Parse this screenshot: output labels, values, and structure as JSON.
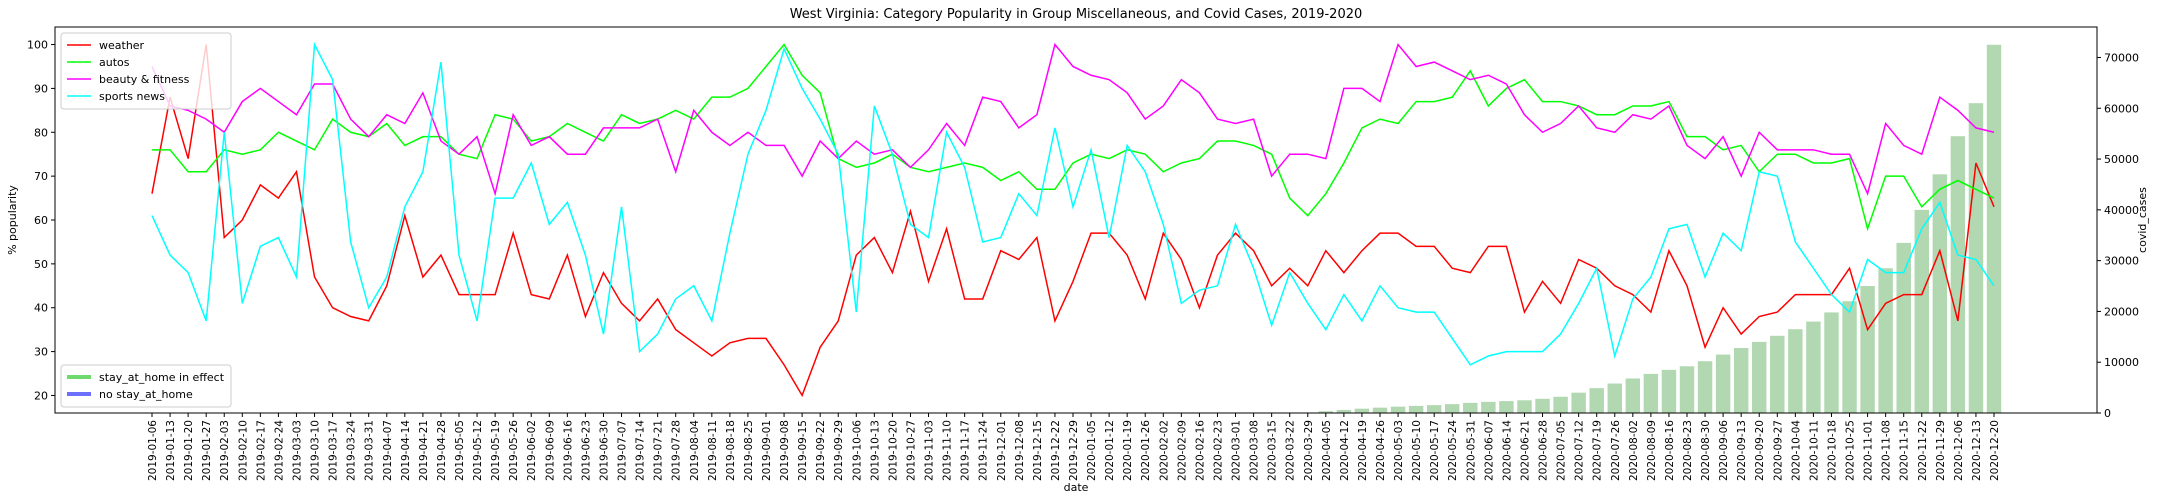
{
  "chart_data": {
    "type": "line",
    "title": "West Virginia: Category Popularity in Group Miscellaneous, and Covid Cases, 2019-2020",
    "xlabel": "date",
    "ylabel": "% popularity",
    "y2label": "covid_cases",
    "categories": [
      "2019-01-06",
      "2019-01-13",
      "2019-01-20",
      "2019-01-27",
      "2019-02-03",
      "2019-02-10",
      "2019-02-17",
      "2019-02-24",
      "2019-03-03",
      "2019-03-10",
      "2019-03-17",
      "2019-03-24",
      "2019-03-31",
      "2019-04-07",
      "2019-04-14",
      "2019-04-21",
      "2019-04-28",
      "2019-05-05",
      "2019-05-12",
      "2019-05-19",
      "2019-05-26",
      "2019-06-02",
      "2019-06-09",
      "2019-06-16",
      "2019-06-23",
      "2019-06-30",
      "2019-07-07",
      "2019-07-14",
      "2019-07-21",
      "2019-07-28",
      "2019-08-04",
      "2019-08-11",
      "2019-08-18",
      "2019-08-25",
      "2019-09-01",
      "2019-09-08",
      "2019-09-15",
      "2019-09-22",
      "2019-09-29",
      "2019-10-06",
      "2019-10-13",
      "2019-10-20",
      "2019-10-27",
      "2019-11-03",
      "2019-11-10",
      "2019-11-17",
      "2019-11-24",
      "2019-12-01",
      "2019-12-08",
      "2019-12-15",
      "2019-12-22",
      "2019-12-29",
      "2020-01-05",
      "2020-01-12",
      "2020-01-19",
      "2020-01-26",
      "2020-02-02",
      "2020-02-09",
      "2020-02-16",
      "2020-02-23",
      "2020-03-01",
      "2020-03-08",
      "2020-03-15",
      "2020-03-22",
      "2020-03-29",
      "2020-04-05",
      "2020-04-12",
      "2020-04-19",
      "2020-04-26",
      "2020-05-03",
      "2020-05-10",
      "2020-05-17",
      "2020-05-24",
      "2020-05-31",
      "2020-06-07",
      "2020-06-14",
      "2020-06-21",
      "2020-06-28",
      "2020-07-05",
      "2020-07-12",
      "2020-07-19",
      "2020-07-26",
      "2020-08-02",
      "2020-08-09",
      "2020-08-16",
      "2020-08-23",
      "2020-08-30",
      "2020-09-06",
      "2020-09-13",
      "2020-09-20",
      "2020-09-27",
      "2020-10-04",
      "2020-10-11",
      "2020-10-18",
      "2020-10-25",
      "2020-11-01",
      "2020-11-08",
      "2020-11-15",
      "2020-11-22",
      "2020-11-29",
      "2020-12-06",
      "2020-12-13",
      "2020-12-20"
    ],
    "series": [
      {
        "name": "weather",
        "color": "#ff0000",
        "values": [
          66,
          88,
          74,
          100,
          56,
          60,
          68,
          65,
          71,
          47,
          40,
          38,
          37,
          45,
          61,
          47,
          52,
          43,
          43,
          43,
          57,
          43,
          42,
          52,
          38,
          48,
          41,
          37,
          42,
          35,
          32,
          29,
          32,
          33,
          33,
          27,
          20,
          31,
          37,
          52,
          56,
          48,
          62,
          46,
          58,
          42,
          42,
          53,
          51,
          56,
          37,
          46,
          57,
          57,
          52,
          42,
          57,
          51,
          40,
          52,
          57,
          53,
          45,
          49,
          45,
          53,
          48,
          53,
          57,
          57,
          54,
          54,
          49,
          48,
          54,
          54,
          39,
          46,
          41,
          51,
          49,
          45,
          43,
          39,
          53,
          45,
          31,
          40,
          34,
          38,
          39,
          43,
          43,
          43,
          49,
          35,
          41,
          43,
          43,
          53,
          37,
          73,
          63
        ]
      },
      {
        "name": "autos",
        "color": "#00ff00",
        "values": [
          76,
          76,
          71,
          71,
          76,
          75,
          76,
          80,
          78,
          76,
          83,
          80,
          79,
          82,
          77,
          79,
          79,
          75,
          74,
          84,
          83,
          78,
          79,
          82,
          80,
          78,
          84,
          82,
          83,
          85,
          83,
          88,
          88,
          90,
          95,
          100,
          93,
          89,
          74,
          72,
          73,
          75,
          72,
          71,
          72,
          73,
          72,
          69,
          71,
          67,
          67,
          73,
          75,
          74,
          76,
          75,
          71,
          73,
          74,
          78,
          78,
          77,
          75,
          65,
          61,
          66,
          73,
          81,
          83,
          82,
          87,
          87,
          88,
          94,
          86,
          90,
          92,
          87,
          87,
          86,
          84,
          84,
          86,
          86,
          87,
          79,
          79,
          76,
          77,
          71,
          75,
          75,
          73,
          73,
          74,
          58,
          70,
          70,
          63,
          67,
          69,
          67,
          65
        ]
      },
      {
        "name": "beauty & fitness",
        "color": "#ff00ff",
        "values": [
          95,
          86,
          85,
          83,
          80,
          87,
          90,
          87,
          84,
          91,
          91,
          83,
          79,
          84,
          82,
          89,
          78,
          75,
          79,
          66,
          84,
          77,
          79,
          75,
          75,
          81,
          81,
          81,
          83,
          71,
          85,
          80,
          77,
          80,
          77,
          77,
          70,
          78,
          74,
          78,
          75,
          76,
          72,
          76,
          82,
          77,
          88,
          87,
          81,
          84,
          100,
          95,
          93,
          92,
          89,
          83,
          86,
          92,
          89,
          83,
          82,
          83,
          70,
          75,
          75,
          74,
          90,
          90,
          87,
          100,
          95,
          96,
          94,
          92,
          93,
          91,
          84,
          80,
          82,
          86,
          81,
          80,
          84,
          83,
          86,
          77,
          74,
          79,
          70,
          80,
          76,
          76,
          76,
          75,
          75,
          66,
          82,
          77,
          75,
          88,
          85,
          81,
          80
        ]
      },
      {
        "name": "sports news",
        "color": "#00ffff",
        "values": [
          61,
          52,
          48,
          37,
          80,
          41,
          54,
          56,
          47,
          100,
          92,
          55,
          40,
          47,
          63,
          71,
          96,
          52,
          37,
          65,
          65,
          73,
          59,
          64,
          52,
          34,
          63,
          30,
          34,
          42,
          45,
          37,
          57,
          75,
          85,
          99,
          90,
          83,
          75,
          39,
          86,
          75,
          59,
          56,
          80,
          72,
          55,
          56,
          66,
          61,
          81,
          63,
          76,
          56,
          77,
          71,
          59,
          41,
          44,
          45,
          59,
          49,
          36,
          48,
          41,
          35,
          43,
          37,
          45,
          40,
          39,
          39,
          33,
          27,
          29,
          30,
          30,
          30,
          34,
          41,
          49,
          29,
          42,
          47,
          58,
          59,
          47,
          57,
          53,
          71,
          70,
          55,
          49,
          43,
          39,
          51,
          48,
          48,
          58,
          64,
          52,
          51,
          45
        ]
      },
      {
        "axis": "y2",
        "color": "#b1d8b1",
        "values": [
          0,
          0,
          0,
          0,
          0,
          0,
          0,
          0,
          0,
          0,
          0,
          0,
          0,
          0,
          0,
          0,
          0,
          0,
          0,
          0,
          0,
          0,
          0,
          0,
          0,
          0,
          0,
          0,
          0,
          0,
          0,
          0,
          0,
          0,
          0,
          0,
          0,
          0,
          0,
          0,
          0,
          0,
          0,
          0,
          0,
          0,
          0,
          0,
          0,
          0,
          0,
          0,
          0,
          0,
          0,
          0,
          0,
          0,
          0,
          0,
          0,
          0,
          0,
          0,
          100,
          350,
          600,
          850,
          1050,
          1250,
          1400,
          1550,
          1750,
          2000,
          2200,
          2350,
          2500,
          2800,
          3200,
          4000,
          4900,
          5800,
          6800,
          7700,
          8500,
          9200,
          10200,
          11500,
          12800,
          14000,
          15200,
          16500,
          18000,
          19800,
          22000,
          25000,
          28500,
          33500,
          40000,
          47000,
          54500,
          61000,
          72500
        ]
      }
    ],
    "ylim": [
      16,
      104
    ],
    "yticks": [
      20,
      30,
      40,
      50,
      60,
      70,
      80,
      90,
      100
    ],
    "y2lim": [
      0,
      76000
    ],
    "y2ticks": [
      0,
      10000,
      20000,
      30000,
      40000,
      50000,
      60000,
      70000
    ],
    "legend": "upper left",
    "legend2": {
      "loc": "lower left",
      "items": [
        {
          "name": "stay_at_home in effect",
          "color": "#6fd86f"
        },
        {
          "name": "no stay_at_home",
          "color": "#6f6fff"
        }
      ]
    }
  }
}
